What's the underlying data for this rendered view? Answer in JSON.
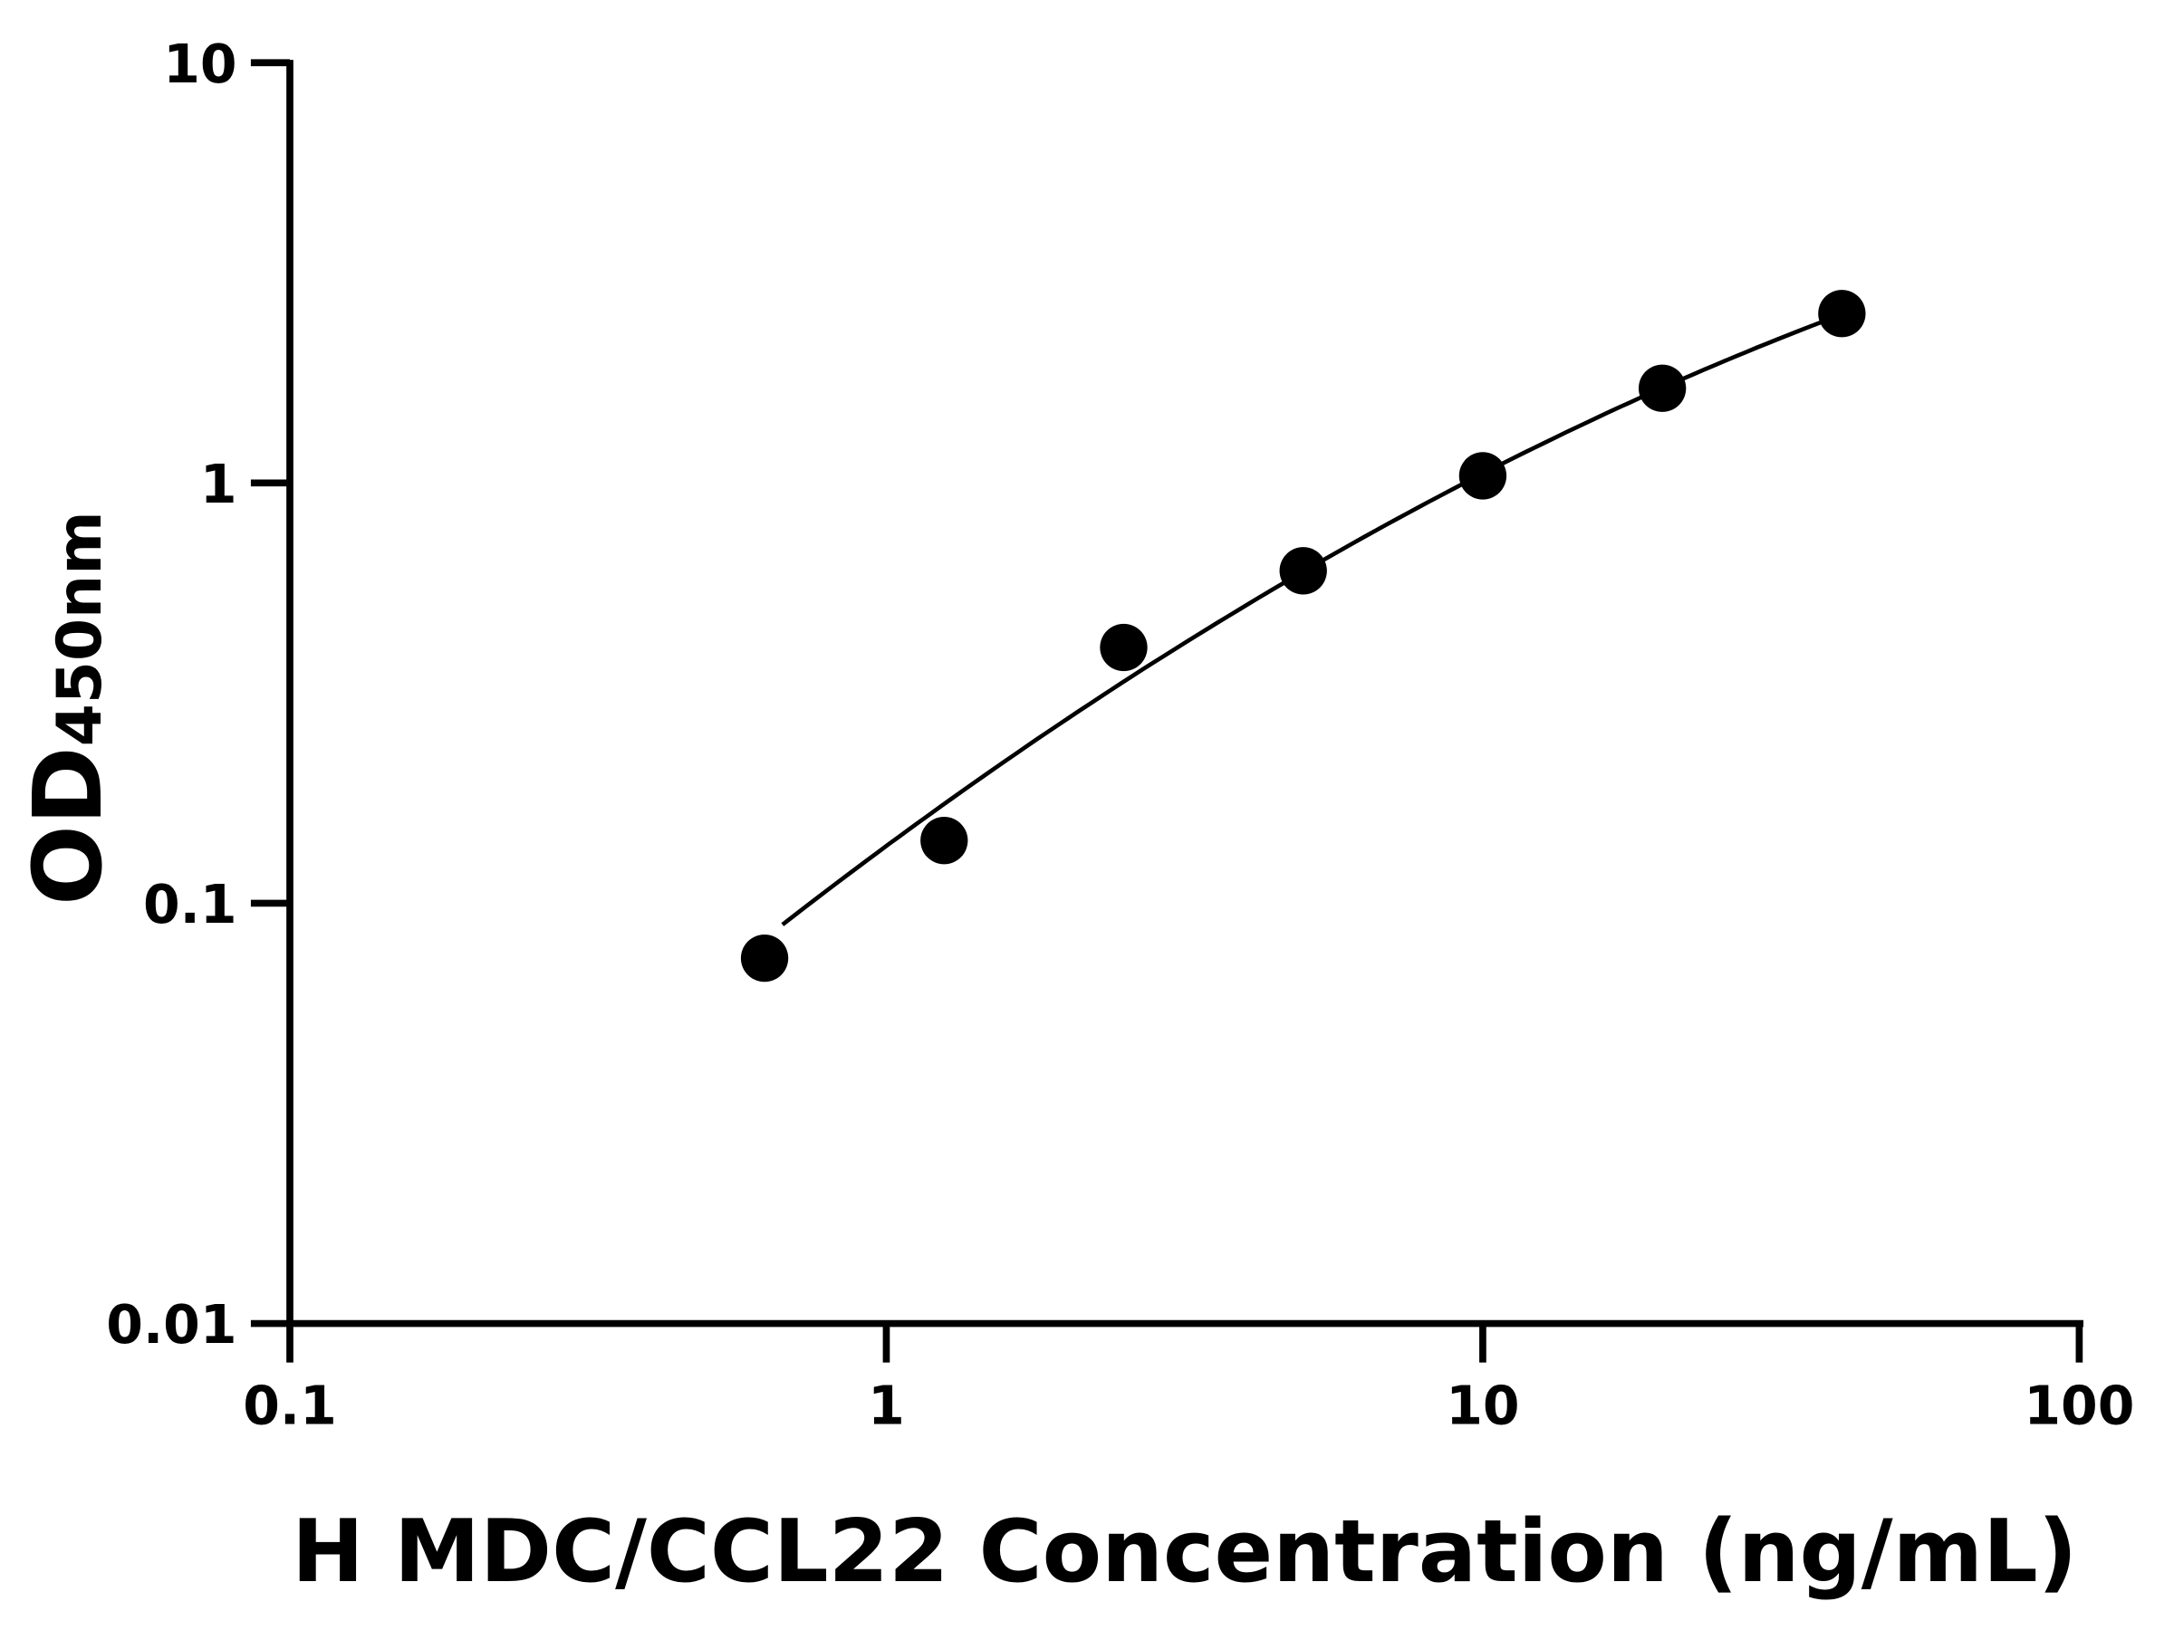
{
  "chart_data": {
    "type": "scatter",
    "title": "",
    "xlabel": "H MDC/CCL22 Concentration (ng/mL)",
    "ylabel_main": "OD",
    "ylabel_sub": "450nm",
    "x_scale": "log",
    "y_scale": "log",
    "xlim": [
      0.1,
      100
    ],
    "ylim": [
      0.01,
      10
    ],
    "x_ticks": [
      "0.1",
      "1",
      "10",
      "100"
    ],
    "y_ticks": [
      "0.01",
      "0.1",
      "1",
      "10"
    ],
    "grid": false,
    "legend": "none",
    "fit_curve": true,
    "marker_color": "#000000",
    "points": [
      {
        "x": 0.625,
        "y": 0.074
      },
      {
        "x": 1.25,
        "y": 0.141
      },
      {
        "x": 2.5,
        "y": 0.406
      },
      {
        "x": 5,
        "y": 0.618
      },
      {
        "x": 10,
        "y": 1.04
      },
      {
        "x": 20,
        "y": 1.68
      },
      {
        "x": 40,
        "y": 2.53
      }
    ]
  }
}
